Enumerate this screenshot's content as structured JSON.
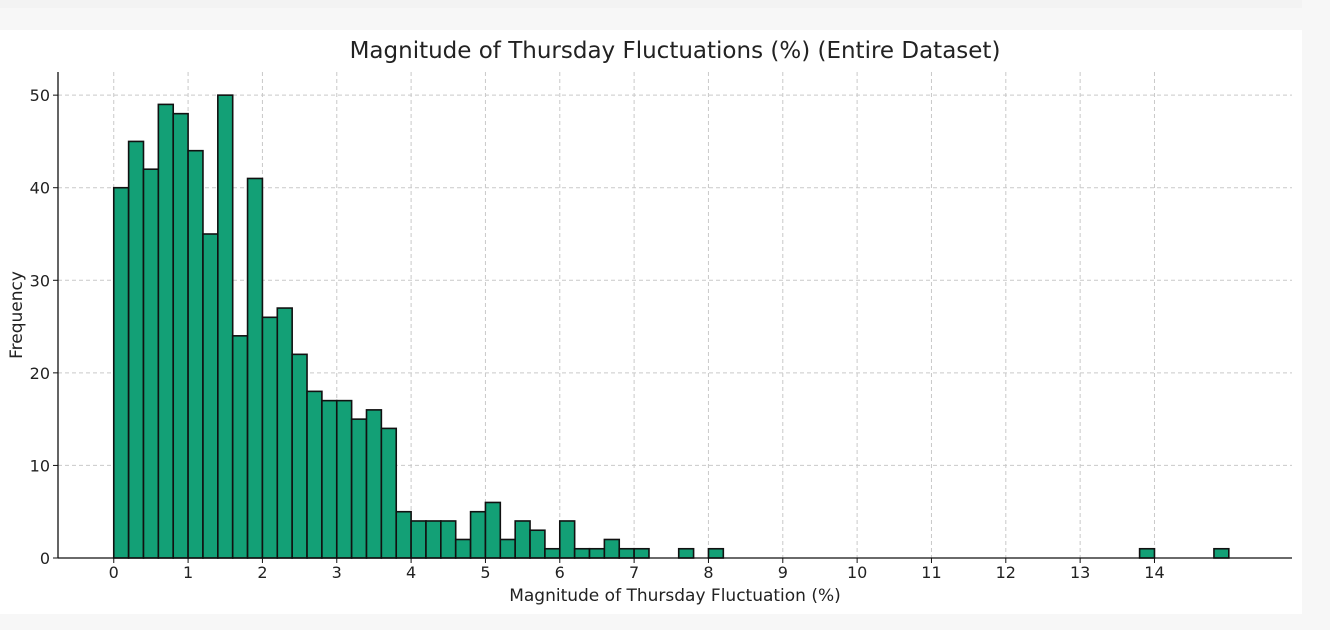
{
  "chart_data": {
    "type": "bar",
    "title": "Magnitude of Thursday Fluctuations (%) (Entire Dataset)",
    "xlabel": "Magnitude of Thursday Fluctuation (%)",
    "ylabel": "Frequency",
    "xlim": [
      -0.75,
      15.85
    ],
    "ylim": [
      0,
      52.5
    ],
    "bin_width": 0.2,
    "x_bin_starts": [
      0,
      0.2,
      0.4,
      0.6,
      0.8,
      1.0,
      1.2,
      1.4,
      1.6,
      1.8,
      2.0,
      2.2,
      2.4,
      2.6,
      2.8,
      3.0,
      3.2,
      3.4,
      3.6,
      3.8,
      4.0,
      4.2,
      4.4,
      4.6,
      4.8,
      5.0,
      5.2,
      5.4,
      5.6,
      5.8,
      6.0,
      6.2,
      6.4,
      6.6,
      6.8,
      7.0,
      7.6,
      8.0,
      13.8,
      14.8
    ],
    "values": [
      40,
      45,
      42,
      49,
      48,
      44,
      35,
      50,
      24,
      41,
      26,
      27,
      22,
      18,
      17,
      17,
      15,
      16,
      14,
      5,
      4,
      4,
      4,
      2,
      5,
      6,
      2,
      4,
      3,
      1,
      4,
      1,
      1,
      2,
      1,
      1,
      1,
      1,
      1,
      1
    ],
    "x_ticks": [
      0,
      1,
      2,
      3,
      4,
      5,
      6,
      7,
      8,
      9,
      10,
      11,
      12,
      13,
      14
    ],
    "y_ticks": [
      0,
      10,
      20,
      30,
      40,
      50
    ],
    "grid": true,
    "bar_color": "#13a076",
    "edge_color": "#111111"
  }
}
